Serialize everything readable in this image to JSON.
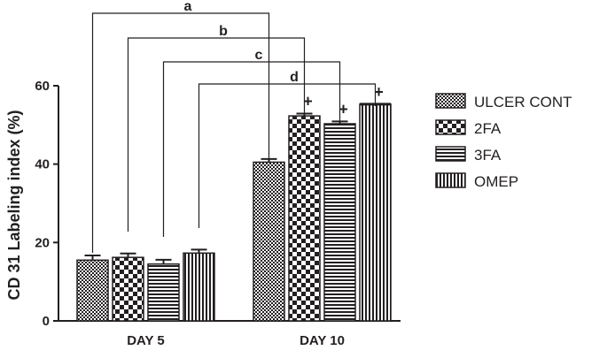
{
  "chart_data": {
    "type": "bar",
    "title": "",
    "xlabel": "",
    "ylabel": "CD 31 Labeling index (%)",
    "ylim": [
      0,
      60
    ],
    "yticks": [
      "0",
      "20",
      "40",
      "60"
    ],
    "categories": [
      "DAY 5",
      "DAY 10"
    ],
    "series": [
      {
        "name": "ULCER CONT",
        "pattern": "checker-small",
        "values": [
          15.5,
          40.5
        ],
        "errors": [
          1.2,
          0.8
        ]
      },
      {
        "name": "2FA",
        "pattern": "checker-large",
        "values": [
          16.2,
          52.3
        ],
        "errors": [
          1.0,
          0.6
        ]
      },
      {
        "name": "3FA",
        "pattern": "horizontal-stripes",
        "values": [
          14.5,
          50.3
        ],
        "errors": [
          1.1,
          0.6
        ]
      },
      {
        "name": "OMEP",
        "pattern": "vertical-stripes",
        "values": [
          17.3,
          55.3
        ],
        "errors": [
          0.9,
          0.0
        ]
      }
    ],
    "significance_marks": [
      {
        "series": "2FA",
        "category": "DAY 10",
        "label": "+"
      },
      {
        "series": "3FA",
        "category": "DAY 10",
        "label": "+"
      },
      {
        "series": "OMEP",
        "category": "DAY 10",
        "label": "+"
      }
    ],
    "comparison_brackets": [
      {
        "label": "a",
        "series": "ULCER CONT"
      },
      {
        "label": "b",
        "series": "2FA"
      },
      {
        "label": "c",
        "series": "3FA"
      },
      {
        "label": "d",
        "series": "OMEP"
      }
    ],
    "legend_placement": "right",
    "grid": false,
    "colors": {
      "ink": "#231f20",
      "background": "#ffffff"
    }
  }
}
